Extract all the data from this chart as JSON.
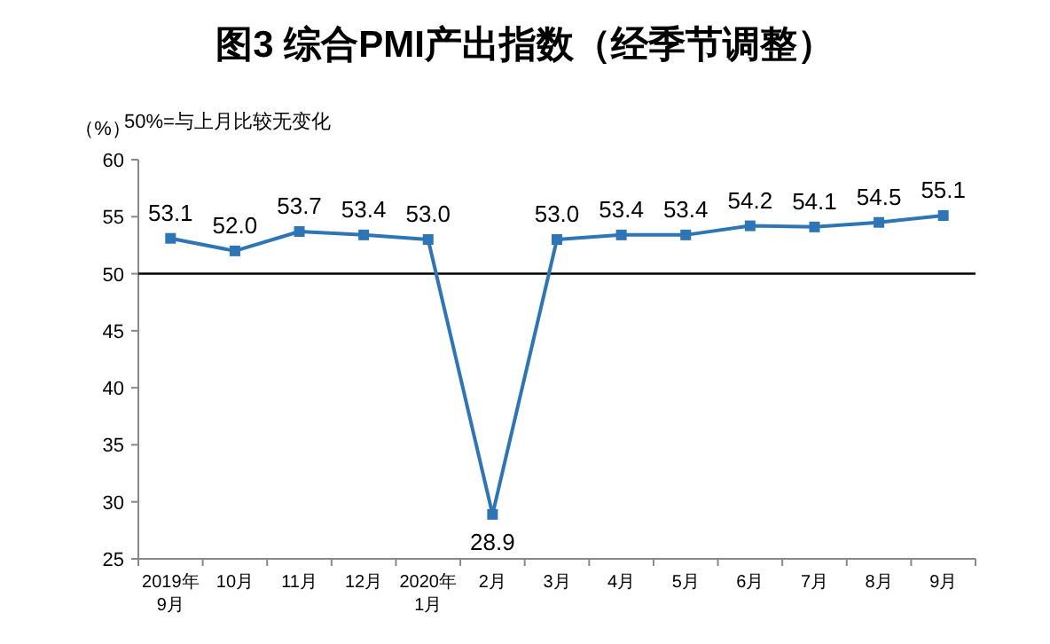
{
  "chart_data": {
    "type": "line",
    "title": "图3 综合PMI产出指数（经季节调整）",
    "ylabel": "（%）",
    "annotations": [
      "50%=与上月比较无变化"
    ],
    "categories": [
      "2019年\n9月",
      "10月",
      "11月",
      "12月",
      "2020年\n1月",
      "2月",
      "3月",
      "4月",
      "5月",
      "6月",
      "7月",
      "8月",
      "9月"
    ],
    "series": [
      {
        "color": "#2e75b6",
        "values": [
          53.1,
          52.0,
          53.7,
          53.4,
          53.0,
          28.9,
          53.0,
          53.4,
          53.4,
          54.2,
          54.1,
          54.5,
          55.1
        ],
        "value_labels": [
          "53.1",
          "52.0",
          "53.7",
          "53.4",
          "53.0",
          "28.9",
          "53.0",
          "53.4",
          "53.4",
          "54.2",
          "54.1",
          "54.5",
          "55.1"
        ]
      }
    ],
    "ylim": [
      25,
      60
    ],
    "yticks": [
      25,
      30,
      35,
      40,
      45,
      50,
      55,
      60
    ],
    "ref_lines": [
      {
        "axis": "y",
        "value": 50,
        "color": "#000000"
      }
    ],
    "marker": "square",
    "line_style": "solid",
    "grid": false
  }
}
